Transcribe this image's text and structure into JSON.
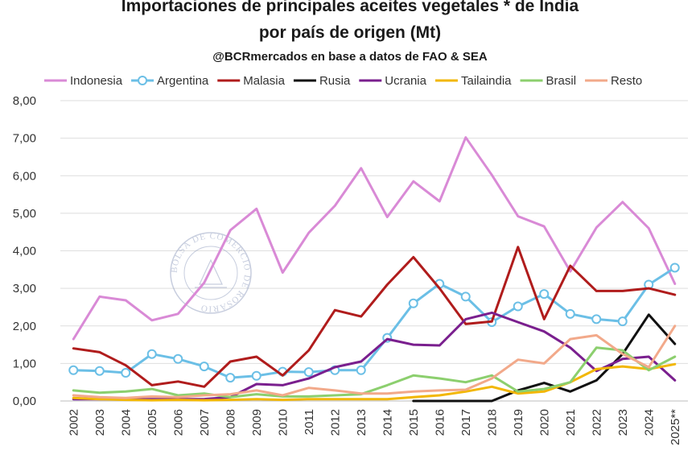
{
  "chart_data": {
    "type": "line",
    "title_line1": "Importaciones de principales aceites vegetales * de India",
    "title_line2": "por país de origen (Mt)",
    "subtitle": "@BCRmercados en base a datos de FAO & SEA",
    "xlabel": "",
    "ylabel": "",
    "ylim": [
      0,
      8
    ],
    "grid": true,
    "legend_position": "top",
    "categories": [
      "2002",
      "2003",
      "2004",
      "2005",
      "2006",
      "2007",
      "2008",
      "2009",
      "2010",
      "2011",
      "2012",
      "2013",
      "2014",
      "2015",
      "2016",
      "2017",
      "2018",
      "2019",
      "2020",
      "2021",
      "2022",
      "2023",
      "2024",
      "2025**"
    ],
    "y_ticks": [
      "0,00",
      "1,00",
      "2,00",
      "3,00",
      "4,00",
      "5,00",
      "6,00",
      "7,00",
      "8,00"
    ],
    "series": [
      {
        "name": "Indonesia",
        "color": "#d98ad6",
        "marker": "none",
        "values": [
          1.65,
          2.78,
          2.68,
          2.15,
          2.32,
          3.15,
          4.55,
          5.12,
          3.42,
          4.48,
          5.2,
          6.2,
          4.9,
          5.85,
          5.32,
          7.02,
          6.02,
          4.92,
          4.65,
          3.45,
          4.62,
          5.3,
          4.6,
          3.12
        ]
      },
      {
        "name": "Argentina",
        "color": "#6bbfe6",
        "marker": "circle",
        "values": [
          0.82,
          0.8,
          0.75,
          1.25,
          1.12,
          0.92,
          0.62,
          0.67,
          0.78,
          0.77,
          0.82,
          0.82,
          1.68,
          2.6,
          3.12,
          2.78,
          2.1,
          2.52,
          2.85,
          2.32,
          2.18,
          2.12,
          3.1,
          3.55
        ]
      },
      {
        "name": "Malasia",
        "color": "#b01c1c",
        "marker": "none",
        "values": [
          1.4,
          1.3,
          0.95,
          0.42,
          0.52,
          0.38,
          1.05,
          1.18,
          0.68,
          1.35,
          2.42,
          2.25,
          3.1,
          3.83,
          3.0,
          2.05,
          2.12,
          4.1,
          2.18,
          3.6,
          2.93,
          2.93,
          3.0,
          2.83
        ]
      },
      {
        "name": "Rusia",
        "color": "#111111",
        "marker": "none",
        "values": [
          null,
          null,
          null,
          null,
          null,
          null,
          null,
          null,
          null,
          null,
          null,
          null,
          null,
          0.0,
          0.0,
          0.0,
          0.0,
          0.28,
          0.48,
          0.25,
          0.55,
          1.25,
          2.3,
          1.52
        ]
      },
      {
        "name": "Ucrania",
        "color": "#7a1f8e",
        "marker": "none",
        "values": [
          0.05,
          0.05,
          0.05,
          0.05,
          0.05,
          0.05,
          0.1,
          0.45,
          0.42,
          0.6,
          0.9,
          1.05,
          1.65,
          1.5,
          1.48,
          2.18,
          2.35,
          2.1,
          1.85,
          1.42,
          0.8,
          1.12,
          1.18,
          0.55
        ]
      },
      {
        "name": "Tailaindia",
        "color": "#f2b705",
        "marker": "none",
        "values": [
          0.08,
          0.05,
          0.03,
          0.02,
          0.03,
          0.02,
          0.03,
          0.05,
          0.03,
          0.05,
          0.05,
          0.05,
          0.05,
          0.1,
          0.15,
          0.25,
          0.38,
          0.2,
          0.25,
          0.5,
          0.85,
          0.92,
          0.85,
          0.98
        ]
      },
      {
        "name": "Brasil",
        "color": "#8ccf6e",
        "marker": "none",
        "values": [
          0.28,
          0.22,
          0.25,
          0.32,
          0.15,
          0.2,
          0.1,
          0.18,
          0.12,
          0.12,
          0.15,
          0.18,
          0.42,
          0.68,
          0.6,
          0.5,
          0.68,
          0.25,
          0.32,
          0.5,
          1.42,
          1.35,
          0.82,
          1.18
        ]
      },
      {
        "name": "Resto",
        "color": "#f2a98a",
        "marker": "none",
        "values": [
          0.15,
          0.1,
          0.08,
          0.12,
          0.1,
          0.15,
          0.18,
          0.28,
          0.15,
          0.35,
          0.28,
          0.2,
          0.2,
          0.25,
          0.28,
          0.3,
          0.6,
          1.1,
          1.0,
          1.65,
          1.75,
          1.25,
          0.9,
          2.0
        ]
      }
    ]
  },
  "watermark": {
    "text": "BOLSA DE COMERCIO DE ROSARIO"
  }
}
